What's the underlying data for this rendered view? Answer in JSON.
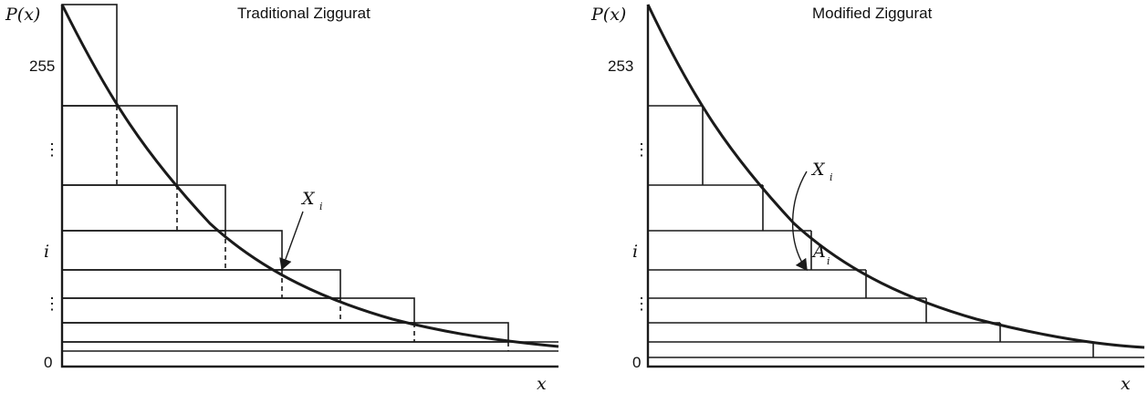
{
  "left_panel": {
    "title": "Traditional Ziggurat",
    "y_axis_label": "P(x)",
    "x_axis_label": "x",
    "y_ticks": {
      "top": "255",
      "mid": "i",
      "bottom": "0",
      "dots": "⋮"
    },
    "annotation": {
      "main": "X",
      "sub": "i"
    }
  },
  "right_panel": {
    "title": "Modified Ziggurat",
    "y_axis_label": "P(x)",
    "x_axis_label": "x",
    "y_ticks": {
      "top": "253",
      "mid": "i",
      "bottom": "0",
      "dots": "⋮"
    },
    "annotation_x": {
      "main": "X",
      "sub": "i"
    },
    "annotation_a": {
      "main": "A",
      "sub": "i"
    }
  }
}
